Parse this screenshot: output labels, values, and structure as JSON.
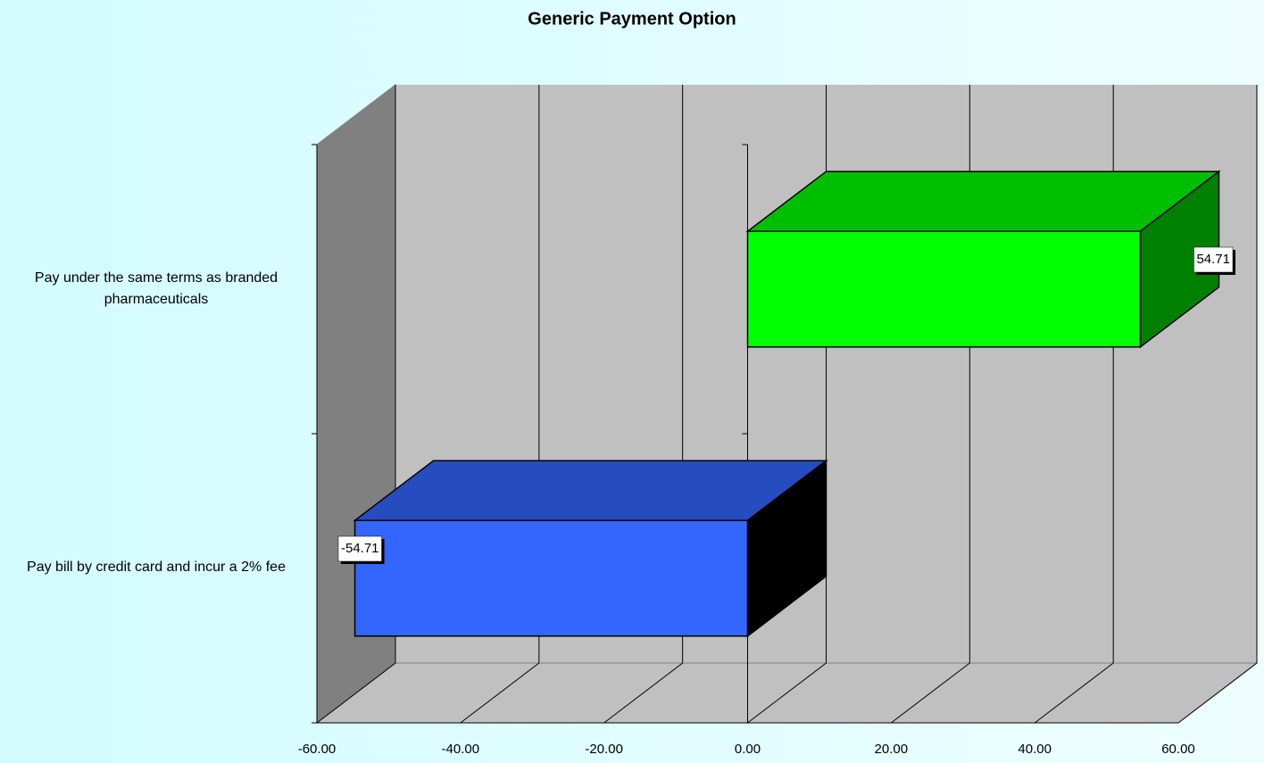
{
  "chart_data": {
    "type": "bar3d_horizontal",
    "title": "Generic Payment Option",
    "categories": [
      "Pay bill by credit card and incur a 2% fee",
      "Pay under the same terms as branded pharmaceuticals"
    ],
    "values": [
      -54.71,
      54.71
    ],
    "colors": [
      "#3366ff",
      "#00ff00"
    ],
    "xlim": [
      -60,
      60
    ],
    "xticks": [
      {
        "value": -60,
        "label": "-60.00"
      },
      {
        "value": -40,
        "label": "-40.00"
      },
      {
        "value": -20,
        "label": "-20.00"
      },
      {
        "value": 0,
        "label": "0.00"
      },
      {
        "value": 20,
        "label": "20.00"
      },
      {
        "value": 40,
        "label": "40.00"
      },
      {
        "value": 60,
        "label": "60.00"
      }
    ],
    "grid": true
  }
}
